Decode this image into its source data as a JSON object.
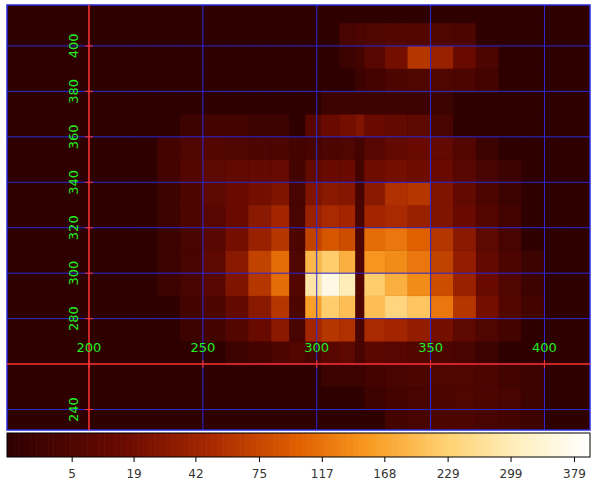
{
  "chart_data": {
    "type": "heatmap",
    "xlim": [
      164,
      420
    ],
    "ylim": [
      231,
      418
    ],
    "xticks": [
      200,
      250,
      300,
      350,
      400
    ],
    "yticks": [
      240,
      280,
      300,
      320,
      340,
      360,
      380,
      400
    ],
    "axes_cross": [
      200,
      260
    ],
    "grid": true,
    "x_edges": [
      220,
      230,
      240,
      250,
      260,
      270,
      280,
      288,
      295,
      302,
      310,
      317,
      321,
      330,
      340,
      350,
      360,
      370,
      380,
      390,
      400,
      410
    ],
    "y_edges": [
      230,
      240,
      250,
      260,
      270,
      280,
      290,
      300,
      310,
      320,
      330,
      340,
      350,
      360,
      370,
      380,
      390,
      400,
      410
    ],
    "cells": [
      [
        0,
        0,
        0,
        0,
        0,
        0,
        0,
        0,
        0,
        0,
        0,
        0,
        0,
        2,
        3,
        4,
        4,
        3,
        2,
        1,
        0
      ],
      [
        0,
        0,
        0,
        0,
        0,
        0,
        0,
        0,
        0,
        0,
        0,
        0,
        1,
        2,
        3,
        4,
        5,
        4,
        3,
        1,
        0
      ],
      [
        0,
        0,
        0,
        0,
        0,
        0,
        0,
        0,
        0,
        1,
        1,
        1,
        2,
        3,
        4,
        5,
        5,
        4,
        2,
        1,
        0
      ],
      [
        0,
        0,
        0,
        0,
        1,
        2,
        4,
        6,
        3,
        8,
        10,
        3,
        9,
        8,
        6,
        4,
        3,
        1,
        0,
        0,
        0
      ],
      [
        0,
        0,
        1,
        2,
        6,
        15,
        30,
        3,
        45,
        60,
        55,
        3,
        50,
        45,
        35,
        20,
        10,
        5,
        2,
        0,
        0
      ],
      [
        0,
        0,
        2,
        4,
        12,
        30,
        60,
        4,
        160,
        220,
        200,
        5,
        200,
        240,
        210,
        120,
        60,
        20,
        6,
        2,
        0
      ],
      [
        0,
        1,
        3,
        8,
        25,
        60,
        110,
        6,
        280,
        360,
        300,
        6,
        220,
        180,
        140,
        80,
        40,
        15,
        5,
        1,
        0
      ],
      [
        0,
        1,
        3,
        10,
        30,
        70,
        110,
        5,
        190,
        220,
        180,
        5,
        150,
        140,
        120,
        70,
        35,
        12,
        4,
        1,
        0
      ],
      [
        0,
        1,
        3,
        8,
        20,
        40,
        60,
        4,
        70,
        90,
        80,
        4,
        110,
        120,
        100,
        60,
        30,
        10,
        3,
        0,
        0
      ],
      [
        0,
        1,
        4,
        8,
        15,
        30,
        45,
        3,
        40,
        50,
        45,
        3,
        45,
        50,
        40,
        25,
        15,
        6,
        2,
        0,
        0
      ],
      [
        0,
        1,
        4,
        10,
        15,
        20,
        25,
        3,
        25,
        30,
        28,
        3,
        30,
        55,
        60,
        25,
        12,
        4,
        1,
        0,
        0
      ],
      [
        0,
        2,
        6,
        10,
        12,
        12,
        14,
        2,
        12,
        15,
        15,
        2,
        18,
        20,
        18,
        15,
        8,
        3,
        1,
        0,
        0
      ],
      [
        0,
        2,
        5,
        6,
        5,
        4,
        4,
        2,
        3,
        4,
        5,
        2,
        8,
        12,
        15,
        12,
        6,
        1,
        0,
        0,
        0
      ],
      [
        0,
        0,
        1,
        2,
        2,
        1,
        1,
        0,
        8,
        15,
        20,
        25,
        15,
        12,
        10,
        3,
        0,
        0,
        0,
        0,
        0
      ],
      [
        0,
        0,
        0,
        0,
        0,
        0,
        0,
        0,
        0,
        1,
        1,
        1,
        1,
        1,
        1,
        1,
        0,
        0,
        0,
        0,
        0
      ],
      [
        0,
        0,
        0,
        0,
        0,
        0,
        0,
        0,
        0,
        0,
        0,
        1,
        2,
        4,
        5,
        5,
        4,
        2,
        0,
        0,
        0
      ],
      [
        0,
        0,
        0,
        0,
        0,
        0,
        0,
        0,
        0,
        0,
        1,
        2,
        8,
        20,
        60,
        40,
        15,
        4,
        0,
        0,
        0
      ],
      [
        0,
        0,
        0,
        0,
        0,
        0,
        0,
        0,
        0,
        0,
        3,
        4,
        5,
        6,
        6,
        5,
        4,
        0,
        0,
        0,
        0
      ]
    ],
    "color_range": [
      0,
      400
    ],
    "color_ticks": [
      5,
      19,
      42,
      75,
      117,
      168,
      229,
      299,
      379
    ]
  }
}
